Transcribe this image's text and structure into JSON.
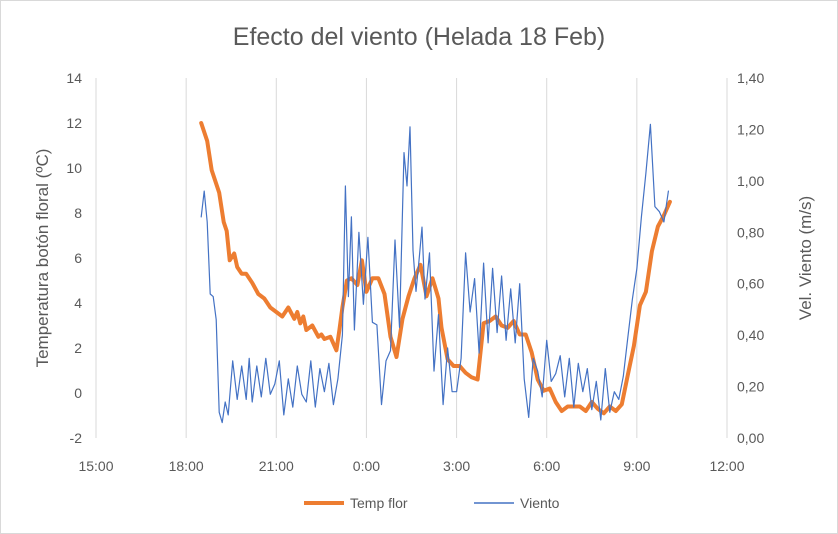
{
  "chart_data": {
    "type": "line",
    "title": "Efecto del viento (Helada 18 Feb)",
    "xlabel": "",
    "ylabel": "Temperatura botón floral (ºC)",
    "y2label": "Vel. Viento (m/s)",
    "xlim": [
      "15:00",
      "36:00"
    ],
    "ylim": [
      -2,
      14
    ],
    "y2lim": [
      0,
      1.4
    ],
    "grid": "vertical",
    "legend_position": "bottom",
    "x_ticks": [
      "15:00",
      "18:00",
      "21:00",
      "0:00",
      "3:00",
      "6:00",
      "9:00",
      "12:00"
    ],
    "y_ticks": [
      "-2",
      "0",
      "2",
      "4",
      "6",
      "8",
      "10",
      "12",
      "14"
    ],
    "y2_ticks": [
      "0,00",
      "0,20",
      "0,40",
      "0,60",
      "0,80",
      "1,00",
      "1,20",
      "1,40"
    ],
    "series": [
      {
        "name": "Temp flor",
        "axis": "left",
        "color": "#ed7d31",
        "x": [
          18.5,
          18.7,
          18.85,
          18.9,
          19.1,
          19.25,
          19.35,
          19.45,
          19.6,
          19.7,
          19.85,
          20.0,
          20.2,
          20.4,
          20.6,
          20.8,
          21.0,
          21.2,
          21.4,
          21.6,
          21.7,
          21.8,
          21.9,
          22.0,
          22.2,
          22.4,
          22.5,
          22.6,
          22.8,
          23.0,
          23.1,
          23.2,
          23.35,
          23.5,
          23.7,
          23.85,
          24.0,
          24.2,
          24.4,
          24.6,
          24.8,
          25.0,
          25.2,
          25.4,
          25.6,
          25.8,
          26.0,
          26.2,
          26.4,
          26.5,
          26.7,
          26.9,
          27.1,
          27.3,
          27.5,
          27.7,
          27.9,
          28.1,
          28.3,
          28.5,
          28.7,
          28.9,
          29.1,
          29.3,
          29.5,
          29.7,
          29.9,
          30.1,
          30.3,
          30.5,
          30.7,
          30.9,
          31.1,
          31.3,
          31.5,
          31.7,
          31.9,
          32.1,
          32.3,
          32.5,
          32.7,
          32.9,
          33.1,
          33.3,
          33.5,
          33.7,
          33.9,
          34.1
        ],
        "values": [
          12.0,
          11.2,
          9.9,
          9.7,
          8.9,
          7.6,
          7.2,
          5.9,
          6.2,
          5.6,
          5.3,
          5.3,
          4.9,
          4.4,
          4.2,
          3.8,
          3.6,
          3.4,
          3.8,
          3.3,
          3.6,
          3.1,
          3.4,
          2.8,
          3.0,
          2.5,
          2.6,
          2.4,
          2.5,
          1.9,
          2.8,
          3.8,
          5.0,
          5.1,
          4.8,
          5.9,
          4.5,
          5.1,
          5.1,
          4.4,
          2.5,
          1.6,
          3.3,
          4.3,
          5.1,
          5.7,
          4.3,
          5.1,
          4.2,
          2.9,
          1.5,
          1.2,
          1.2,
          0.9,
          0.7,
          0.6,
          3.1,
          3.2,
          3.4,
          3.0,
          2.9,
          3.2,
          2.6,
          2.6,
          1.8,
          0.6,
          0.1,
          0.2,
          -0.4,
          -0.8,
          -0.6,
          -0.6,
          -0.6,
          -0.8,
          -0.4,
          -0.7,
          -0.9,
          -0.6,
          -0.8,
          -0.5,
          0.8,
          2.1,
          3.9,
          4.5,
          6.3,
          7.4,
          7.9,
          8.5
        ]
      },
      {
        "name": "Viento",
        "axis": "right",
        "color": "#4472c4",
        "x": [
          18.5,
          18.6,
          18.7,
          18.8,
          18.9,
          19.0,
          19.1,
          19.2,
          19.3,
          19.4,
          19.55,
          19.7,
          19.85,
          20.0,
          20.1,
          20.2,
          20.35,
          20.5,
          20.65,
          20.8,
          20.95,
          21.1,
          21.25,
          21.4,
          21.55,
          21.7,
          21.85,
          22.0,
          22.15,
          22.3,
          22.45,
          22.6,
          22.75,
          22.9,
          23.05,
          23.2,
          23.3,
          23.4,
          23.5,
          23.6,
          23.75,
          23.9,
          24.05,
          24.2,
          24.35,
          24.5,
          24.65,
          24.8,
          24.95,
          25.1,
          25.25,
          25.35,
          25.45,
          25.55,
          25.65,
          25.75,
          25.85,
          25.95,
          26.1,
          26.25,
          26.4,
          26.55,
          26.7,
          26.85,
          27.0,
          27.15,
          27.3,
          27.45,
          27.6,
          27.75,
          27.9,
          28.05,
          28.2,
          28.35,
          28.5,
          28.65,
          28.8,
          28.95,
          29.1,
          29.25,
          29.4,
          29.55,
          29.7,
          29.85,
          30.0,
          30.15,
          30.3,
          30.45,
          30.6,
          30.75,
          30.9,
          31.05,
          31.2,
          31.35,
          31.5,
          31.65,
          31.8,
          31.95,
          32.1,
          32.25,
          32.4,
          32.55,
          32.7,
          32.85,
          33.0,
          33.15,
          33.3,
          33.45,
          33.6,
          33.75,
          33.9,
          34.05
        ],
        "values": [
          0.86,
          0.96,
          0.84,
          0.56,
          0.55,
          0.46,
          0.1,
          0.06,
          0.14,
          0.09,
          0.3,
          0.15,
          0.28,
          0.15,
          0.31,
          0.14,
          0.28,
          0.16,
          0.31,
          0.17,
          0.21,
          0.3,
          0.09,
          0.23,
          0.12,
          0.28,
          0.17,
          0.14,
          0.3,
          0.12,
          0.27,
          0.18,
          0.29,
          0.13,
          0.23,
          0.4,
          0.98,
          0.55,
          0.86,
          0.42,
          0.8,
          0.52,
          0.78,
          0.45,
          0.44,
          0.13,
          0.3,
          0.34,
          0.77,
          0.43,
          1.11,
          0.98,
          1.21,
          0.73,
          0.57,
          0.69,
          0.82,
          0.54,
          0.72,
          0.26,
          0.48,
          0.13,
          0.35,
          0.18,
          0.18,
          0.31,
          0.72,
          0.49,
          0.62,
          0.33,
          0.68,
          0.37,
          0.66,
          0.41,
          0.63,
          0.38,
          0.58,
          0.37,
          0.6,
          0.23,
          0.08,
          0.31,
          0.26,
          0.16,
          0.38,
          0.22,
          0.25,
          0.32,
          0.16,
          0.31,
          0.12,
          0.29,
          0.18,
          0.27,
          0.11,
          0.22,
          0.07,
          0.27,
          0.1,
          0.18,
          0.15,
          0.24,
          0.39,
          0.54,
          0.66,
          0.86,
          1.03,
          1.22,
          0.9,
          0.88,
          0.84,
          0.96
        ]
      }
    ]
  }
}
